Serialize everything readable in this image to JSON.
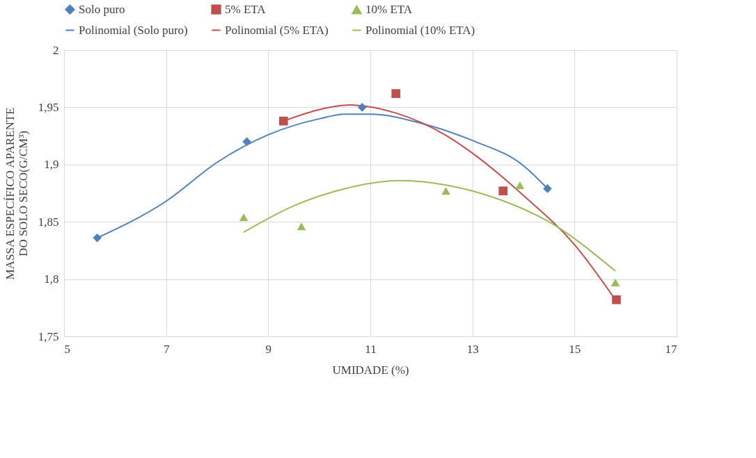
{
  "chart_data": {
    "type": "scatter",
    "xlabel": "UMIDADE (%)",
    "ylabel": "MASSA  ESPECÍFICO APARENTE DO SOLO SECO(G/CM³)",
    "xlim": [
      5,
      17
    ],
    "xticks": [
      5,
      7,
      9,
      11,
      13,
      15,
      17
    ],
    "ylim": [
      1.75,
      2
    ],
    "yticks": [
      {
        "value": 1.75,
        "label": "1,75"
      },
      {
        "value": 1.8,
        "label": "1,8"
      },
      {
        "value": 1.85,
        "label": "1,85"
      },
      {
        "value": 1.9,
        "label": "1,9"
      },
      {
        "value": 1.95,
        "label": "1,95"
      },
      {
        "value": 2,
        "label": "2"
      }
    ],
    "grid": true,
    "legend": "top",
    "series": [
      {
        "name": "Solo puro",
        "marker": "diamond",
        "color": "#4f81bd",
        "x": [
          5.65,
          8.58,
          10.84,
          14.47
        ],
        "values": [
          1.836,
          1.92,
          1.95,
          1.879
        ]
      },
      {
        "name": "5% ETA",
        "marker": "square",
        "color": "#c0504d",
        "x": [
          9.3,
          11.5,
          13.6,
          15.82
        ],
        "values": [
          1.938,
          1.962,
          1.877,
          1.782
        ]
      },
      {
        "name": "10% ETA",
        "marker": "triangle",
        "color": "#9bbb59",
        "x": [
          8.52,
          9.65,
          12.48,
          13.93,
          15.8
        ],
        "values": [
          1.854,
          1.846,
          1.877,
          1.882,
          1.797
        ]
      },
      {
        "name": "Polinomial (Solo puro)",
        "type": "line",
        "marker": "none",
        "color": "#4f81bd",
        "x": [
          5.65,
          7,
          8,
          9,
          10,
          10.5,
          11,
          12,
          13,
          14,
          14.47
        ],
        "values": [
          1.836,
          1.868,
          1.902,
          1.926,
          1.94,
          1.944,
          1.944,
          1.936,
          1.921,
          1.899,
          1.879
        ]
      },
      {
        "name": "Polinomial (5% ETA)",
        "type": "line",
        "marker": "none",
        "color": "#c0504d",
        "x": [
          9.3,
          10,
          10.6,
          11.5,
          12.5,
          13,
          14,
          15,
          15.8
        ],
        "values": [
          1.938,
          1.948,
          1.952,
          1.945,
          1.925,
          1.91,
          1.873,
          1.83,
          1.782
        ]
      },
      {
        "name": "Polinomial (10% ETA)",
        "type": "line",
        "marker": "none",
        "color": "#9bbb59",
        "x": [
          8.52,
          9.5,
          10.5,
          11.6,
          12.5,
          13.5,
          14.5,
          15.8
        ],
        "values": [
          1.841,
          1.864,
          1.879,
          1.886,
          1.882,
          1.87,
          1.85,
          1.807
        ]
      }
    ]
  }
}
